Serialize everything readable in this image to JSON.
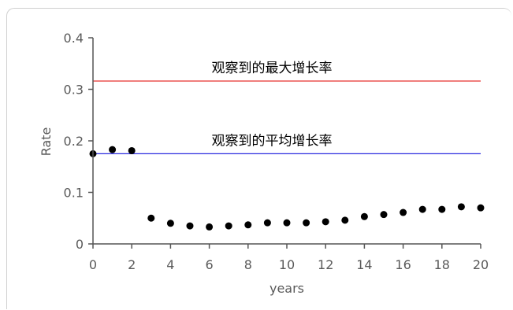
{
  "chart_data": {
    "type": "scatter",
    "title": "",
    "xlabel": "years",
    "ylabel": "Rate",
    "xlim": [
      0,
      20
    ],
    "ylim": [
      0,
      0.4
    ],
    "x_ticks": [
      "0",
      "2",
      "4",
      "6",
      "8",
      "10",
      "12",
      "14",
      "16",
      "18",
      "20"
    ],
    "y_ticks": [
      "0",
      "0.1",
      "0.2",
      "0.3",
      "0.4"
    ],
    "grid": false,
    "series": [
      {
        "x": [
          0,
          1,
          2,
          3,
          4,
          5,
          6,
          7,
          8,
          9,
          10,
          11,
          12,
          13,
          14,
          15,
          16,
          17,
          18,
          19,
          20
        ],
        "y": [
          0.175,
          0.183,
          0.181,
          0.05,
          0.04,
          0.035,
          0.033,
          0.035,
          0.037,
          0.041,
          0.041,
          0.041,
          0.043,
          0.046,
          0.053,
          0.057,
          0.061,
          0.067,
          0.067,
          0.072,
          0.07
        ],
        "color": "#000000"
      }
    ],
    "reference_lines": [
      {
        "label": "观察到的最大增长率",
        "y": 0.316,
        "color": "#e8302e"
      },
      {
        "label": "观察到的平均增长率",
        "y": 0.175,
        "color": "#2a2ae0"
      }
    ]
  }
}
